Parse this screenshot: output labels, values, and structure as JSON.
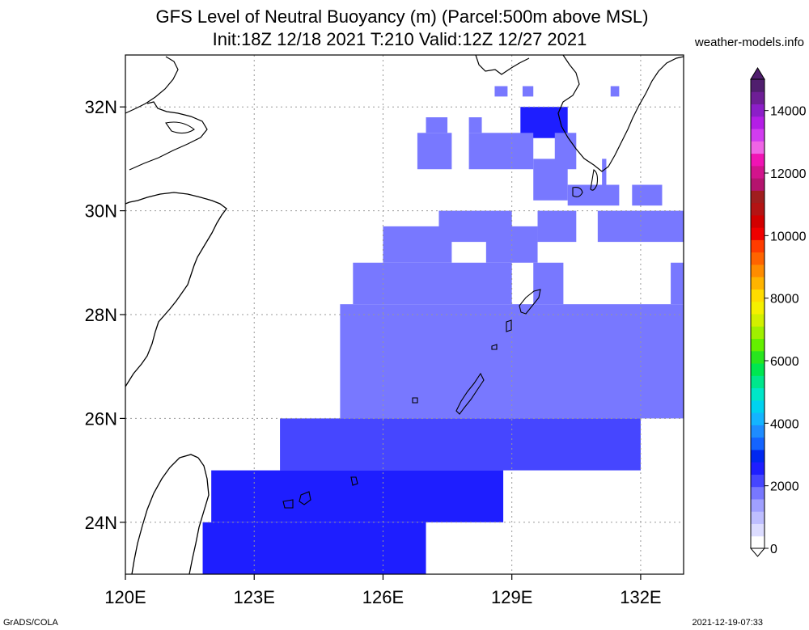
{
  "title_line1": "GFS Level of Neutral Buoyancy (m) (Parcel:500m above MSL)",
  "title_line2": "Init:18Z 12/18 2021 T:210 Valid:12Z 12/27 2021",
  "site": "weather-models.info",
  "footer_left": "GrADS/COLA",
  "footer_right": "2021-12-19-07:33",
  "chart_data": {
    "type": "heatmap",
    "title": "GFS Level of Neutral Buoyancy (m) (Parcel:500m above MSL)",
    "subtitle": "Init:18Z 12/18 2021 T:210 Valid:12Z 12/27 2021",
    "xlabel": "",
    "ylabel": "",
    "x_ticks": [
      "120E",
      "123E",
      "126E",
      "129E",
      "132E"
    ],
    "y_ticks": [
      "24N",
      "26N",
      "28N",
      "30N",
      "32N"
    ],
    "xlim": [
      120,
      133
    ],
    "ylim": [
      23,
      33
    ],
    "grid": true,
    "units": "m",
    "colorbar": {
      "ticks": [
        "0",
        "2000",
        "4000",
        "6000",
        "8000",
        "10000",
        "12000",
        "14000"
      ],
      "range": [
        0,
        15000
      ],
      "colors": [
        "#ffffff",
        "#dcdcff",
        "#bebeff",
        "#a0a0ff",
        "#7878ff",
        "#4646ff",
        "#1e1eff",
        "#0028f0",
        "#1464ff",
        "#1e8cff",
        "#14b4ff",
        "#00d2f0",
        "#00e6c8",
        "#00e68c",
        "#00e650",
        "#28e61e",
        "#64f000",
        "#a0f000",
        "#d2f000",
        "#f5f000",
        "#ffdc00",
        "#ffb400",
        "#ff8c00",
        "#ff6400",
        "#ff3c00",
        "#f00000",
        "#d20000",
        "#b41414",
        "#a01e1e",
        "#b4146e",
        "#d2148c",
        "#f014b4",
        "#f064e6",
        "#d23cf0",
        "#b41ee6",
        "#8c1ec8",
        "#6e1e96",
        "#501e6e"
      ]
    },
    "field_rows": [
      {
        "lat": [
          32.4,
          32.2
        ],
        "lon_ranges": [
          [
            128.6,
            128.9
          ],
          [
            129.25,
            129.5
          ],
          [
            131.3,
            131.5
          ]
        ],
        "value": 1800
      },
      {
        "lat": [
          32.0,
          31.4
        ],
        "lon_ranges": [
          [
            129.2,
            130.3
          ]
        ],
        "value": 2400
      },
      {
        "lat": [
          31.8,
          31.5
        ],
        "lon_ranges": [
          [
            127.0,
            127.5
          ],
          [
            128.0,
            128.3
          ]
        ],
        "value": 1800
      },
      {
        "lat": [
          31.5,
          30.8
        ],
        "lon_ranges": [
          [
            126.8,
            127.6
          ],
          [
            128.0,
            129.5
          ],
          [
            130.0,
            130.5
          ]
        ],
        "value": 1800
      },
      {
        "lat": [
          31.0,
          30.2
        ],
        "lon_ranges": [
          [
            129.5,
            130.3
          ],
          [
            131.1,
            131.2
          ]
        ],
        "value": 1800
      },
      {
        "lat": [
          30.5,
          30.1
        ],
        "lon_ranges": [
          [
            130.3,
            131.5
          ],
          [
            131.8,
            132.5
          ]
        ],
        "value": 1800
      },
      {
        "lat": [
          30.0,
          29.4
        ],
        "lon_ranges": [
          [
            127.3,
            129.0
          ],
          [
            129.6,
            130.5
          ],
          [
            131.0,
            133.0
          ]
        ],
        "value": 1800
      },
      {
        "lat": [
          29.7,
          29.0
        ],
        "lon_ranges": [
          [
            126.0,
            127.6
          ],
          [
            128.4,
            129.6
          ]
        ],
        "value": 1800
      },
      {
        "lat": [
          29.0,
          28.2
        ],
        "lon_ranges": [
          [
            125.3,
            129.0
          ],
          [
            129.5,
            130.2
          ],
          [
            132.7,
            133.0
          ]
        ],
        "value": 1800
      },
      {
        "lat": [
          28.2,
          26.0
        ],
        "lon_ranges": [
          [
            125.0,
            133.0
          ]
        ],
        "value": 1800
      },
      {
        "lat": [
          26.0,
          25.0
        ],
        "lon_ranges": [
          [
            123.6,
            132.0
          ]
        ],
        "value": 2300
      },
      {
        "lat": [
          25.0,
          24.0
        ],
        "lon_ranges": [
          [
            122.0,
            128.8
          ]
        ],
        "value": 2400
      },
      {
        "lat": [
          24.0,
          23.0
        ],
        "lon_ranges": [
          [
            121.8,
            127.0
          ]
        ],
        "value": 2500
      }
    ]
  }
}
